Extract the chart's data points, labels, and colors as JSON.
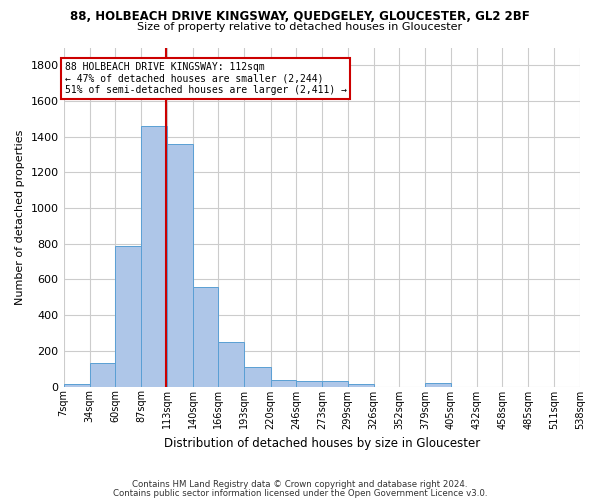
{
  "title1": "88, HOLBEACH DRIVE KINGSWAY, QUEDGELEY, GLOUCESTER, GL2 2BF",
  "title2": "Size of property relative to detached houses in Gloucester",
  "xlabel": "Distribution of detached houses by size in Gloucester",
  "ylabel": "Number of detached properties",
  "footer1": "Contains HM Land Registry data © Crown copyright and database right 2024.",
  "footer2": "Contains public sector information licensed under the Open Government Licence v3.0.",
  "annotation_title": "88 HOLBEACH DRIVE KINGSWAY: 112sqm",
  "annotation_line2": "← 47% of detached houses are smaller (2,244)",
  "annotation_line3": "51% of semi-detached houses are larger (2,411) →",
  "property_size": 112,
  "bin_edges": [
    7,
    34,
    60,
    87,
    113,
    140,
    166,
    193,
    220,
    246,
    273,
    299,
    326,
    352,
    379,
    405,
    432,
    458,
    485,
    511,
    538
  ],
  "bar_heights": [
    15,
    130,
    790,
    1460,
    1360,
    560,
    250,
    110,
    35,
    30,
    30,
    15,
    0,
    0,
    20,
    0,
    0,
    0,
    0,
    0
  ],
  "bar_color": "#aec6e8",
  "bar_edgecolor": "#5a9fd4",
  "vline_x": 112,
  "vline_color": "#cc0000",
  "annotation_box_color": "#cc0000",
  "background_color": "#ffffff",
  "grid_color": "#cccccc",
  "ylim": [
    0,
    1900
  ],
  "yticks": [
    0,
    200,
    400,
    600,
    800,
    1000,
    1200,
    1400,
    1600,
    1800
  ]
}
